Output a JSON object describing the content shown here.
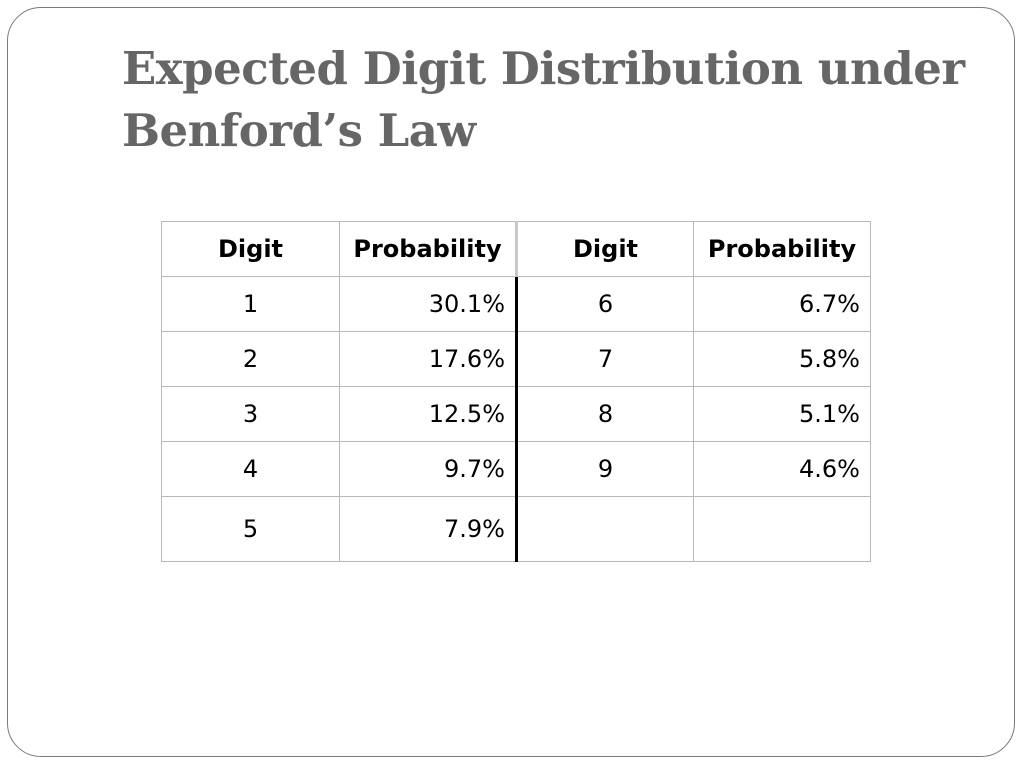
{
  "slide": {
    "title": "Expected Digit Distribution under Benford’s Law"
  },
  "table": {
    "headers": [
      "Digit",
      "Probability",
      "Digit",
      "Probability"
    ],
    "rows": [
      {
        "digit_a": "1",
        "prob_a": "30.1%",
        "digit_b": "6",
        "prob_b": "6.7%"
      },
      {
        "digit_a": "2",
        "prob_a": "17.6%",
        "digit_b": "7",
        "prob_b": "5.8%"
      },
      {
        "digit_a": "3",
        "prob_a": "12.5%",
        "digit_b": "8",
        "prob_b": "5.1%"
      },
      {
        "digit_a": "4",
        "prob_a": "9.7%",
        "digit_b": "9",
        "prob_b": "4.6%"
      },
      {
        "digit_a": "5",
        "prob_a": "7.9%",
        "digit_b": "",
        "prob_b": ""
      }
    ]
  }
}
